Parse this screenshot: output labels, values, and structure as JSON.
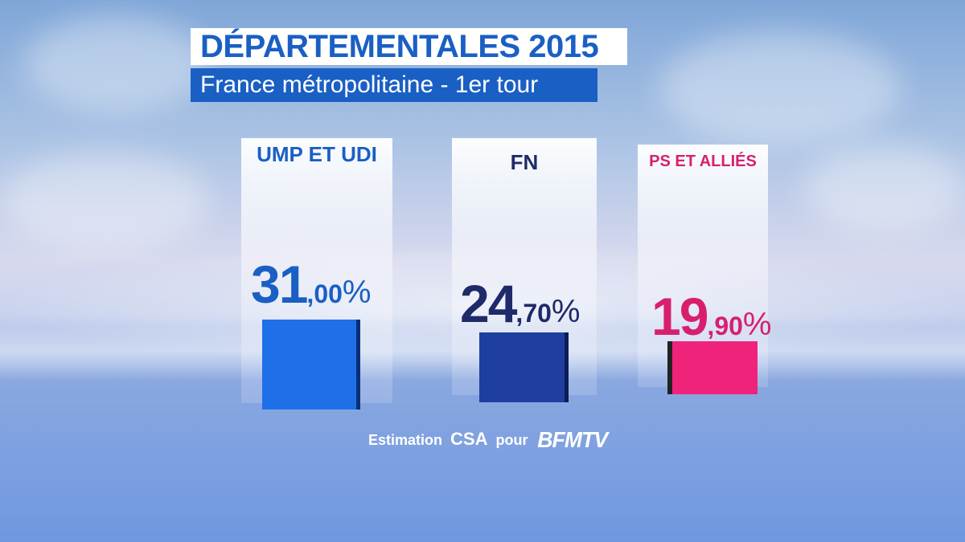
{
  "header": {
    "title": "DÉPARTEMENTALES 2015",
    "subtitle": "France métropolitaine - 1er tour"
  },
  "chart_data": {
    "type": "bar",
    "categories": [
      "UMP ET UDI",
      "FN",
      "PS ET ALLIÉS"
    ],
    "values": [
      31.0,
      24.7,
      19.9
    ],
    "value_labels": [
      {
        "int": "31",
        "dec": ",00",
        "pct": "%"
      },
      {
        "int": "24",
        "dec": ",70",
        "pct": "%"
      },
      {
        "int": "19",
        "dec": ",90",
        "pct": "%"
      }
    ],
    "colors": [
      "#1f6fe8",
      "#1e3fa0",
      "#f0237a"
    ],
    "label_colors": [
      "#1a5fc4",
      "#1f2a6a",
      "#d81f6e"
    ],
    "title": "DÉPARTEMENTALES 2015",
    "subtitle": "France métropolitaine - 1er tour"
  },
  "footer": {
    "prefix": "Estimation",
    "pollster": "CSA",
    "for": "pour",
    "logo": "BFMTV"
  }
}
